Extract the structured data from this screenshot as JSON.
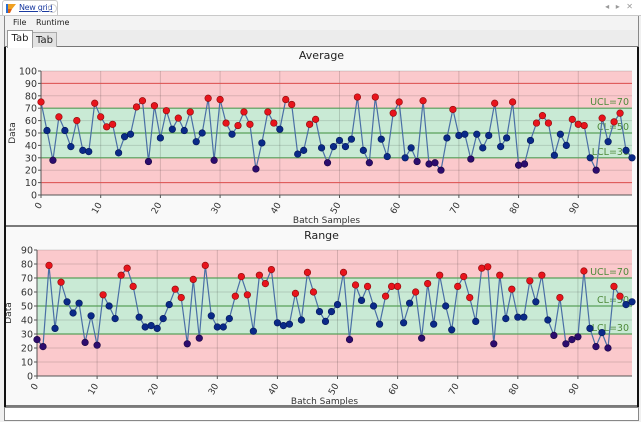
{
  "window": {
    "doc_tab_title": "New grid",
    "controls": "◂ ▸ ✕"
  },
  "menu": {
    "items": [
      {
        "label": "File"
      },
      {
        "label": "Runtime"
      }
    ]
  },
  "tabs": [
    {
      "label": "Tab",
      "active": true
    },
    {
      "label": "Tab",
      "active": false
    }
  ],
  "colors": {
    "out_zone": "#fbc9cc",
    "in_zone": "#c9ead5",
    "limit_line": "#5aa05a",
    "spec_line": "#e05050",
    "series_line": "#4a6fa5",
    "point_high": "#e8141c",
    "point_mid": "#0a2a88",
    "point_low": "#2c0c6e"
  },
  "chart_data": [
    {
      "type": "line",
      "title": "Average",
      "xlabel": "Batch Samples",
      "ylabel": "Data",
      "xlim": [
        0,
        99
      ],
      "ylim": [
        0,
        100
      ],
      "yticks": [
        0,
        10,
        20,
        30,
        40,
        50,
        60,
        70,
        80,
        90,
        100
      ],
      "xticks": [
        0,
        10,
        20,
        30,
        40,
        50,
        60,
        70,
        80,
        90
      ],
      "spec_lines": [
        10,
        90
      ],
      "control_limits": [
        {
          "label": "UCL=70",
          "value": 70
        },
        {
          "label": "CL=50",
          "value": 50
        },
        {
          "label": "LCL=30",
          "value": 30
        }
      ],
      "grid": true,
      "series": [
        {
          "name": "Average",
          "values": [
            75,
            52,
            28,
            63,
            52,
            39,
            60,
            36,
            35,
            74,
            63,
            55,
            57,
            34,
            47,
            49,
            71,
            76,
            27,
            72,
            46,
            68,
            53,
            62,
            52,
            67,
            43,
            50,
            78,
            28,
            77,
            58,
            49,
            56,
            67,
            57,
            21,
            42,
            67,
            58,
            53,
            77,
            73,
            33,
            36,
            57,
            61,
            38,
            26,
            39,
            44,
            39,
            45,
            79,
            36,
            26,
            79,
            45,
            31,
            66,
            75,
            30,
            38,
            27,
            76,
            25,
            26,
            20,
            46,
            69,
            48,
            49,
            29,
            49,
            38,
            48,
            74,
            39,
            46,
            75,
            24,
            25,
            44,
            58,
            64,
            58,
            32,
            49,
            40,
            61,
            57,
            56,
            30,
            20,
            62,
            43,
            59,
            66,
            36,
            30
          ]
        }
      ]
    },
    {
      "type": "line",
      "title": "Range",
      "xlabel": "Batch Samples",
      "ylabel": "Data",
      "xlim": [
        0,
        99
      ],
      "ylim": [
        0,
        90
      ],
      "yticks": [
        0,
        10,
        20,
        30,
        40,
        50,
        60,
        70,
        80,
        90
      ],
      "xticks": [
        0,
        10,
        20,
        30,
        40,
        50,
        60,
        70,
        80,
        90
      ],
      "spec_lines": [],
      "control_limits": [
        {
          "label": "UCL=70",
          "value": 70
        },
        {
          "label": "CL=50",
          "value": 50
        },
        {
          "label": "LCL=30",
          "value": 30
        }
      ],
      "grid": true,
      "series": [
        {
          "name": "Range",
          "values": [
            26,
            21,
            79,
            34,
            67,
            53,
            45,
            52,
            24,
            43,
            22,
            58,
            50,
            41,
            72,
            77,
            64,
            42,
            35,
            36,
            34,
            41,
            51,
            62,
            56,
            23,
            69,
            27,
            79,
            43,
            35,
            35,
            41,
            57,
            71,
            58,
            32,
            72,
            66,
            76,
            38,
            36,
            37,
            59,
            40,
            74,
            60,
            46,
            39,
            46,
            51,
            74,
            26,
            65,
            54,
            64,
            50,
            37,
            57,
            64,
            64,
            38,
            52,
            60,
            27,
            66,
            37,
            72,
            50,
            33,
            64,
            71,
            56,
            39,
            77,
            78,
            23,
            72,
            41,
            62,
            42,
            42,
            68,
            53,
            72,
            40,
            29,
            56,
            23,
            26,
            28,
            75,
            34,
            21,
            31,
            20,
            64,
            57,
            51,
            53
          ]
        }
      ]
    }
  ]
}
